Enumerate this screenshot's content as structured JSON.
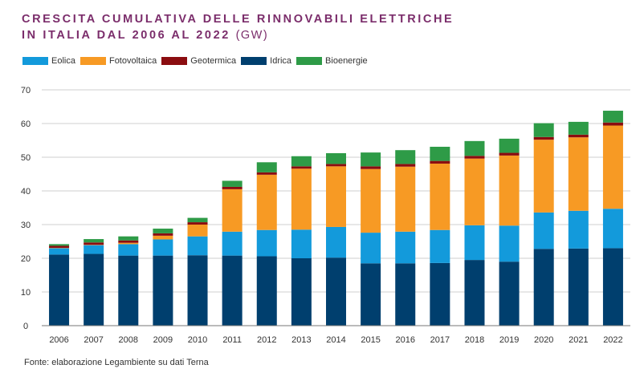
{
  "title": {
    "line1": "CRESCITA CUMULATIVA DELLE RINNOVABILI ELETTRICHE",
    "line2": "IN ITALIA DAL 2006 AL 2022",
    "unit": "(GW)"
  },
  "source": "Fonte: elaborazione Legambiente su dati Terna",
  "chart_data": {
    "type": "bar",
    "stacked": true,
    "title": "CRESCITA CUMULATIVA DELLE RINNOVABILI ELETTRICHE IN ITALIA DAL 2006 AL 2022 (GW)",
    "xlabel": "",
    "ylabel": "",
    "ylim": [
      0,
      70
    ],
    "yticks": [
      0,
      10,
      20,
      30,
      40,
      50,
      60,
      70
    ],
    "grid": true,
    "legend_position": "top-left",
    "categories": [
      "2006",
      "2007",
      "2008",
      "2009",
      "2010",
      "2011",
      "2012",
      "2013",
      "2014",
      "2015",
      "2016",
      "2017",
      "2018",
      "2019",
      "2020",
      "2021",
      "2022"
    ],
    "series": [
      {
        "name": "Idrica",
        "color": "#003f6e",
        "values": [
          21.1,
          21.3,
          20.8,
          20.8,
          20.9,
          20.8,
          20.6,
          20.0,
          20.2,
          18.5,
          18.5,
          18.6,
          19.5,
          19.0,
          22.8,
          22.9,
          23.0
        ]
      },
      {
        "name": "Eolica",
        "color": "#139adb",
        "values": [
          1.9,
          2.6,
          3.4,
          4.8,
          5.6,
          7.1,
          7.8,
          8.5,
          9.1,
          9.1,
          9.4,
          9.8,
          10.3,
          10.7,
          10.8,
          11.2,
          11.7
        ]
      },
      {
        "name": "Fotovoltaica",
        "color": "#f79a24",
        "values": [
          0.1,
          0.1,
          0.4,
          1.1,
          3.5,
          12.6,
          16.4,
          18.1,
          18.0,
          18.9,
          19.3,
          19.7,
          19.8,
          20.8,
          21.6,
          21.8,
          24.7
        ]
      },
      {
        "name": "Geotermica",
        "color": "#8b0d10",
        "values": [
          0.6,
          0.7,
          0.7,
          0.7,
          0.7,
          0.7,
          0.7,
          0.7,
          0.7,
          0.8,
          0.8,
          0.8,
          0.8,
          0.8,
          0.8,
          0.8,
          0.9
        ]
      },
      {
        "name": "Bioenergie",
        "color": "#2e9b47",
        "values": [
          0.5,
          1.0,
          1.2,
          1.4,
          1.3,
          1.8,
          3.0,
          3.0,
          3.2,
          4.1,
          4.1,
          4.2,
          4.4,
          4.2,
          4.1,
          3.8,
          3.5
        ]
      }
    ],
    "legend_order": [
      "Eolica",
      "Fotovoltaica",
      "Geotermica",
      "Idrica",
      "Bioenergie"
    ]
  }
}
